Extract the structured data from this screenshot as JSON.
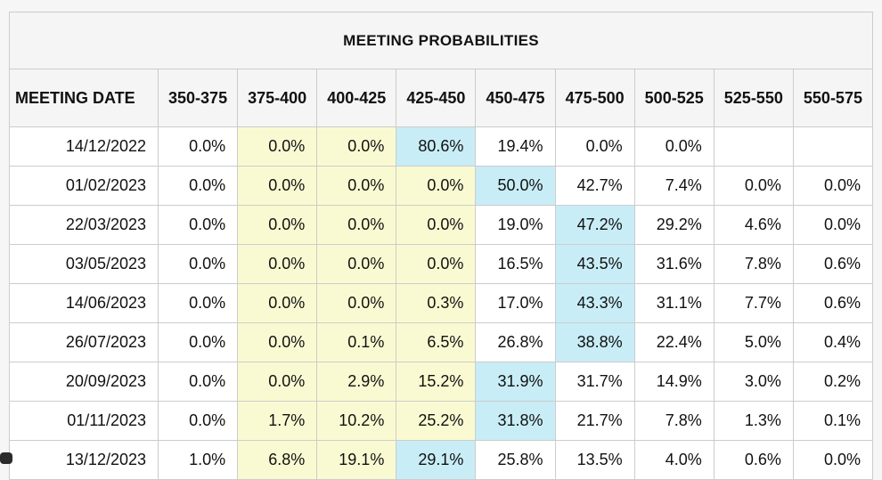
{
  "colors": {
    "page-bg": "#F6F6F7",
    "header-bg": "#F5F5F5",
    "cell-yellow": "#FAFAD2",
    "cell-blue": "#C8EDF6",
    "border": "#CCCCCC",
    "outer-border": "#BBBBBB",
    "text": "#111111"
  },
  "chart_data": {
    "type": "table",
    "title": "MEETING PROBABILITIES",
    "columns": [
      "MEETING DATE",
      "350-375",
      "375-400",
      "400-425",
      "425-450",
      "450-475",
      "475-500",
      "500-525",
      "525-550",
      "550-575"
    ],
    "rows": [
      {
        "date": "14/12/2022",
        "values": [
          "0.0%",
          "0.0%",
          "0.0%",
          "80.6%",
          "19.4%",
          "0.0%",
          "0.0%",
          "",
          ""
        ],
        "highlights": [
          "",
          "y",
          "y",
          "b",
          "",
          "",
          "",
          "",
          ""
        ]
      },
      {
        "date": "01/02/2023",
        "values": [
          "0.0%",
          "0.0%",
          "0.0%",
          "0.0%",
          "50.0%",
          "42.7%",
          "7.4%",
          "0.0%",
          "0.0%"
        ],
        "highlights": [
          "",
          "y",
          "y",
          "y",
          "b",
          "",
          "",
          "",
          ""
        ]
      },
      {
        "date": "22/03/2023",
        "values": [
          "0.0%",
          "0.0%",
          "0.0%",
          "0.0%",
          "19.0%",
          "47.2%",
          "29.2%",
          "4.6%",
          "0.0%"
        ],
        "highlights": [
          "",
          "y",
          "y",
          "y",
          "",
          "b",
          "",
          "",
          ""
        ]
      },
      {
        "date": "03/05/2023",
        "values": [
          "0.0%",
          "0.0%",
          "0.0%",
          "0.0%",
          "16.5%",
          "43.5%",
          "31.6%",
          "7.8%",
          "0.6%"
        ],
        "highlights": [
          "",
          "y",
          "y",
          "y",
          "",
          "b",
          "",
          "",
          ""
        ]
      },
      {
        "date": "14/06/2023",
        "values": [
          "0.0%",
          "0.0%",
          "0.0%",
          "0.3%",
          "17.0%",
          "43.3%",
          "31.1%",
          "7.7%",
          "0.6%"
        ],
        "highlights": [
          "",
          "y",
          "y",
          "y",
          "",
          "b",
          "",
          "",
          ""
        ]
      },
      {
        "date": "26/07/2023",
        "values": [
          "0.0%",
          "0.0%",
          "0.1%",
          "6.5%",
          "26.8%",
          "38.8%",
          "22.4%",
          "5.0%",
          "0.4%"
        ],
        "highlights": [
          "",
          "y",
          "y",
          "y",
          "",
          "b",
          "",
          "",
          ""
        ]
      },
      {
        "date": "20/09/2023",
        "values": [
          "0.0%",
          "0.0%",
          "2.9%",
          "15.2%",
          "31.9%",
          "31.7%",
          "14.9%",
          "3.0%",
          "0.2%"
        ],
        "highlights": [
          "",
          "y",
          "y",
          "y",
          "b",
          "",
          "",
          "",
          ""
        ]
      },
      {
        "date": "01/11/2023",
        "values": [
          "0.0%",
          "1.7%",
          "10.2%",
          "25.2%",
          "31.8%",
          "21.7%",
          "7.8%",
          "1.3%",
          "0.1%"
        ],
        "highlights": [
          "",
          "y",
          "y",
          "y",
          "b",
          "",
          "",
          "",
          ""
        ]
      },
      {
        "date": "13/12/2023",
        "values": [
          "1.0%",
          "6.8%",
          "19.1%",
          "29.1%",
          "25.8%",
          "13.5%",
          "4.0%",
          "0.6%",
          "0.0%"
        ],
        "highlights": [
          "",
          "y",
          "y",
          "b",
          "",
          "",
          "",
          "",
          ""
        ]
      }
    ],
    "layout": {
      "grid": true,
      "yellow_highlight_columns": [
        "375-400",
        "400-425",
        "425-450"
      ],
      "blue_highlight_rule": "max probability cell per row"
    }
  }
}
